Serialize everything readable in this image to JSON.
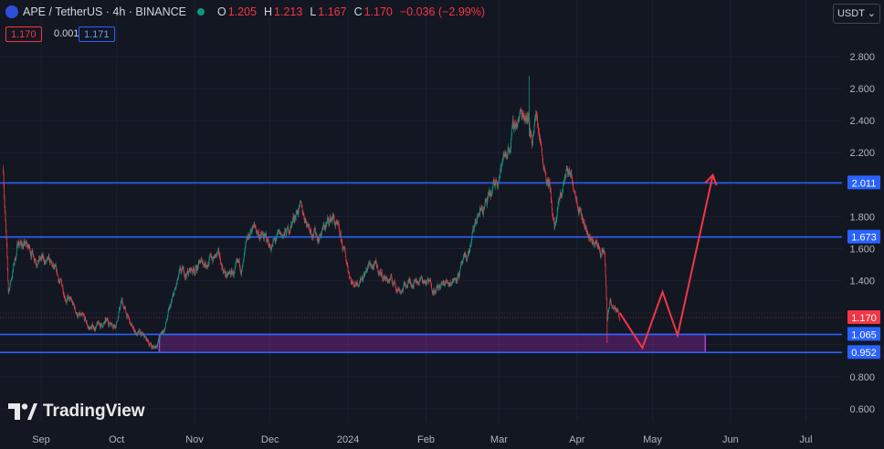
{
  "header": {
    "symbol": "APE / TetherUS · 4h · BINANCE",
    "open_label": "O",
    "open": "1.205",
    "high_label": "H",
    "high": "1.213",
    "low_label": "L",
    "low": "1.167",
    "close_label": "C",
    "close": "1.170",
    "change": "−0.036 (−2.99%)"
  },
  "prices": {
    "bid": "1.170",
    "spread": "0.001",
    "ask": "1.171"
  },
  "currency_button": "USDT",
  "brand": "TradingView",
  "colors": {
    "background": "#131722",
    "up": "#089981",
    "down": "#f23645",
    "level": "#2962ff",
    "zone": "#9c27b0",
    "arrow": "#f23645"
  },
  "chart_data": {
    "type": "candlestick",
    "y_axis": {
      "ticks": [
        0.6,
        0.8,
        1.0,
        1.2,
        1.4,
        1.6,
        1.8,
        2.0,
        2.2,
        2.4,
        2.6,
        2.8
      ],
      "tick_labels": [
        "0.600",
        "0.800",
        "",
        "",
        "1.400",
        "1.600",
        "1.800",
        "",
        "2.200",
        "2.400",
        "2.600",
        "2.800"
      ],
      "range": [
        0.52,
        3.05
      ]
    },
    "x_axis": {
      "labels": [
        "Sep",
        "Oct",
        "Nov",
        "Dec",
        "2024",
        "Feb",
        "Mar",
        "Apr",
        "May",
        "Jun",
        "Jul"
      ],
      "dates": [
        "2023-09-01",
        "2023-10-01",
        "2023-11-01",
        "2023-12-01",
        "2024-01-01",
        "2024-02-01",
        "2024-03-01",
        "2024-04-01",
        "2024-05-01",
        "2024-06-01",
        "2024-07-01"
      ]
    },
    "price_path": [
      [
        "2023-08-17",
        2.1
      ],
      [
        "2023-08-19",
        1.32
      ],
      [
        "2023-08-23",
        1.65
      ],
      [
        "2023-09-05",
        1.48
      ],
      [
        "2023-09-15",
        1.2
      ],
      [
        "2023-09-20",
        1.1
      ],
      [
        "2023-10-01",
        1.15
      ],
      [
        "2023-10-03",
        1.27
      ],
      [
        "2023-10-07",
        1.1
      ],
      [
        "2023-10-16",
        0.98
      ],
      [
        "2023-10-20",
        1.1
      ],
      [
        "2023-10-26",
        1.42
      ],
      [
        "2023-11-05",
        1.52
      ],
      [
        "2023-11-10",
        1.55
      ],
      [
        "2023-11-14",
        1.42
      ],
      [
        "2023-11-20",
        1.48
      ],
      [
        "2023-11-24",
        1.74
      ],
      [
        "2023-12-01",
        1.62
      ],
      [
        "2023-12-08",
        1.7
      ],
      [
        "2023-12-12",
        1.86
      ],
      [
        "2023-12-20",
        1.68
      ],
      [
        "2023-12-26",
        1.8
      ],
      [
        "2024-01-03",
        1.38
      ],
      [
        "2024-01-10",
        1.5
      ],
      [
        "2024-01-16",
        1.42
      ],
      [
        "2024-01-22",
        1.35
      ],
      [
        "2024-01-28",
        1.42
      ],
      [
        "2024-02-06",
        1.35
      ],
      [
        "2024-02-12",
        1.42
      ],
      [
        "2024-02-17",
        1.52
      ],
      [
        "2024-02-22",
        1.82
      ],
      [
        "2024-02-27",
        1.92
      ],
      [
        "2024-03-01",
        2.08
      ],
      [
        "2024-03-05",
        2.25
      ],
      [
        "2024-03-08",
        2.4
      ],
      [
        "2024-03-12",
        2.48
      ],
      [
        "2024-03-14",
        2.3
      ],
      [
        "2024-03-16",
        2.45
      ],
      [
        "2024-03-18",
        2.22
      ],
      [
        "2024-03-21",
        2.0
      ],
      [
        "2024-03-23",
        1.72
      ],
      [
        "2024-03-28",
        2.1
      ],
      [
        "2024-03-31",
        2.0
      ],
      [
        "2024-04-02",
        1.9
      ],
      [
        "2024-04-05",
        1.7
      ],
      [
        "2024-04-09",
        1.62
      ],
      [
        "2024-04-12",
        1.55
      ],
      [
        "2024-04-13",
        1.15
      ],
      [
        "2024-04-14",
        1.26
      ],
      [
        "2024-04-16",
        1.22
      ],
      [
        "2024-04-18",
        1.18
      ]
    ],
    "extreme_wicks": {
      "high": [
        "2024-03-13",
        2.68
      ],
      "low": [
        "2024-04-13",
        1.01
      ]
    },
    "levels": [
      2.011,
      1.673,
      1.065,
      0.952
    ],
    "level_labels": [
      "2.011",
      "1.673",
      "1.065",
      "0.952"
    ],
    "current_price": 1.17,
    "current_price_label": "1.170",
    "support_zone": {
      "from": "2023-10-18",
      "to": "2024-05-22",
      "low": 0.952,
      "high": 1.065
    },
    "projection": [
      [
        "2024-04-18",
        1.2
      ],
      [
        "2024-04-27",
        0.98
      ],
      [
        "2024-05-05",
        1.33
      ],
      [
        "2024-05-11",
        1.06
      ],
      [
        "2024-05-25",
        2.06
      ]
    ]
  }
}
